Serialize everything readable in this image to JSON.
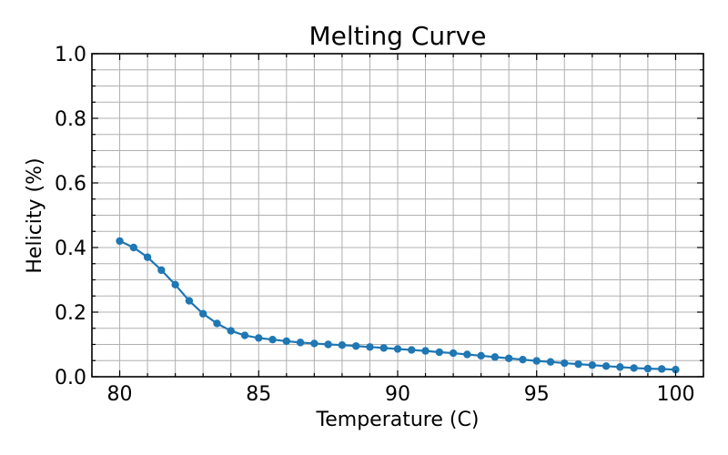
{
  "chart_data": {
    "type": "line",
    "title": "Melting Curve",
    "xlabel": "Temperature (C)",
    "ylabel": "Helicity (%)",
    "xlim": [
      79,
      101
    ],
    "ylim": [
      0.0,
      1.0
    ],
    "x_ticks": [
      80,
      85,
      90,
      95,
      100
    ],
    "y_ticks": [
      0.0,
      0.2,
      0.4,
      0.6,
      0.8,
      1.0
    ],
    "x_tick_labels": [
      "80",
      "85",
      "90",
      "95",
      "100"
    ],
    "y_tick_labels": [
      "0.0",
      "0.2",
      "0.4",
      "0.6",
      "0.8",
      "1.0"
    ],
    "x_minor_step": 1,
    "y_minor_step": 0.05,
    "grid": "on (major and minor)",
    "ticks_direction": "in",
    "color": "#1f77b4",
    "series": [
      {
        "x": [
          80,
          80.5,
          81,
          81.5,
          82,
          82.5,
          83,
          83.5,
          84,
          84.5,
          85,
          85.5,
          86,
          86.5,
          87,
          87.5,
          88,
          88.5,
          89,
          89.5,
          90,
          90.5,
          91,
          91.5,
          92,
          92.5,
          93,
          93.5,
          94,
          94.5,
          95,
          95.5,
          96,
          96.5,
          97,
          97.5,
          98,
          98.5,
          99,
          99.5,
          100
        ],
        "values": [
          0.42,
          0.4,
          0.37,
          0.33,
          0.285,
          0.235,
          0.195,
          0.165,
          0.142,
          0.128,
          0.12,
          0.115,
          0.11,
          0.106,
          0.103,
          0.1,
          0.098,
          0.095,
          0.092,
          0.089,
          0.086,
          0.083,
          0.08,
          0.076,
          0.073,
          0.069,
          0.065,
          0.061,
          0.057,
          0.053,
          0.049,
          0.046,
          0.042,
          0.039,
          0.036,
          0.033,
          0.03,
          0.027,
          0.025,
          0.024,
          0.022
        ]
      }
    ]
  }
}
